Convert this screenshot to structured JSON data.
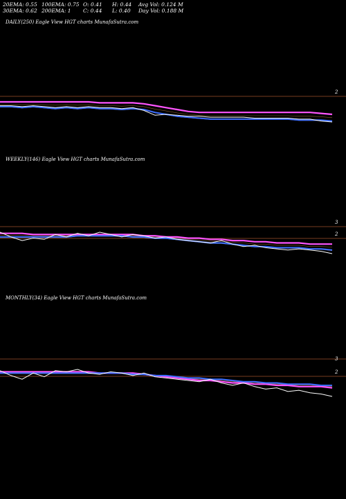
{
  "stats": {
    "row1": {
      "ema20": "20EMA: 0.55",
      "ema100": "100EMA: 0.75",
      "open": "O: 0.41",
      "high": "H: 0.44",
      "avg_vol": "Avg Vol: 0.124  M"
    },
    "row2": {
      "ema30": "30EMA: 0.62",
      "ema200": "200EMA: 1",
      "close": "C: 0.44",
      "low": "L: 0.40",
      "day_vol": "Day Vol: 0.188  M"
    }
  },
  "chart_data": [
    {
      "type": "line",
      "title": "DAILY(250) Eagle   View  HGT charts MunafaSutra.com",
      "level_labels": [
        "2"
      ],
      "colors": {
        "price": "#ffffff",
        "ema_fast": "#3a6cff",
        "ema_slow": "#ff55ff",
        "level": "#a0522d"
      },
      "series": [
        {
          "values": [
            0.62,
            0.62,
            0.61,
            0.62,
            0.61,
            0.6,
            0.61,
            0.6,
            0.61,
            0.6,
            0.6,
            0.59,
            0.6,
            0.57,
            0.52,
            0.53,
            0.52,
            0.51,
            0.51,
            0.5,
            0.5,
            0.5,
            0.5,
            0.49,
            0.49,
            0.49,
            0.49,
            0.48,
            0.48,
            0.46,
            0.45
          ]
        },
        {
          "values": [
            0.61,
            0.61,
            0.6,
            0.61,
            0.6,
            0.59,
            0.6,
            0.59,
            0.6,
            0.59,
            0.59,
            0.58,
            0.59,
            0.58,
            0.55,
            0.53,
            0.51,
            0.5,
            0.49,
            0.48,
            0.48,
            0.48,
            0.48,
            0.48,
            0.48,
            0.48,
            0.48,
            0.47,
            0.47,
            0.47,
            0.46
          ]
        },
        {
          "values": [
            0.66,
            0.66,
            0.66,
            0.66,
            0.66,
            0.66,
            0.66,
            0.66,
            0.66,
            0.65,
            0.65,
            0.65,
            0.65,
            0.64,
            0.62,
            0.6,
            0.58,
            0.56,
            0.55,
            0.55,
            0.55,
            0.55,
            0.55,
            0.55,
            0.55,
            0.55,
            0.55,
            0.55,
            0.55,
            0.54,
            0.53
          ]
        }
      ]
    },
    {
      "type": "line",
      "title": "WEEKLY(146) Eagle   View  HGT charts MunafaSutra.com",
      "level_labels": [
        "3",
        "2"
      ],
      "colors": {
        "price": "#ffffff",
        "ema_fast": "#3a6cff",
        "ema_slow": "#ff55ff",
        "level": "#a0522d"
      },
      "series": [
        {
          "values": [
            0.62,
            0.58,
            0.55,
            0.57,
            0.56,
            0.6,
            0.58,
            0.61,
            0.59,
            0.62,
            0.6,
            0.58,
            0.6,
            0.59,
            0.57,
            0.58,
            0.56,
            0.55,
            0.54,
            0.53,
            0.55,
            0.52,
            0.5,
            0.51,
            0.49,
            0.48,
            0.47,
            0.48,
            0.47,
            0.46,
            0.44
          ]
        },
        {
          "values": [
            0.58,
            0.58,
            0.58,
            0.58,
            0.58,
            0.58,
            0.58,
            0.59,
            0.59,
            0.59,
            0.59,
            0.59,
            0.58,
            0.58,
            0.57,
            0.57,
            0.56,
            0.55,
            0.54,
            0.53,
            0.53,
            0.52,
            0.51,
            0.5,
            0.5,
            0.49,
            0.49,
            0.49,
            0.48,
            0.48,
            0.47
          ]
        },
        {
          "values": [
            0.61,
            0.61,
            0.61,
            0.6,
            0.6,
            0.6,
            0.6,
            0.6,
            0.6,
            0.6,
            0.6,
            0.6,
            0.6,
            0.59,
            0.59,
            0.58,
            0.58,
            0.57,
            0.57,
            0.56,
            0.56,
            0.55,
            0.55,
            0.54,
            0.54,
            0.53,
            0.53,
            0.53,
            0.52,
            0.52,
            0.52
          ]
        }
      ]
    },
    {
      "type": "line",
      "title": "MONTHLY(34) Eagle   View  HGT charts MunafaSutra.com",
      "level_labels": [
        "3",
        "2"
      ],
      "colors": {
        "price": "#ffffff",
        "ema_fast": "#3a6cff",
        "ema_slow": "#ff55ff",
        "level": "#a0522d"
      },
      "series": [
        {
          "values": [
            0.62,
            0.58,
            0.55,
            0.6,
            0.57,
            0.62,
            0.61,
            0.63,
            0.6,
            0.59,
            0.61,
            0.6,
            0.58,
            0.6,
            0.57,
            0.56,
            0.55,
            0.54,
            0.53,
            0.55,
            0.52,
            0.5,
            0.52,
            0.49,
            0.47,
            0.48,
            0.45,
            0.46,
            0.44,
            0.43,
            0.41
          ]
        },
        {
          "values": [
            0.6,
            0.6,
            0.6,
            0.6,
            0.6,
            0.6,
            0.6,
            0.6,
            0.6,
            0.6,
            0.6,
            0.6,
            0.59,
            0.59,
            0.58,
            0.58,
            0.57,
            0.56,
            0.56,
            0.55,
            0.55,
            0.54,
            0.53,
            0.53,
            0.52,
            0.52,
            0.51,
            0.51,
            0.51,
            0.5,
            0.5
          ]
        },
        {
          "values": [
            0.61,
            0.61,
            0.61,
            0.61,
            0.61,
            0.61,
            0.61,
            0.61,
            0.61,
            0.6,
            0.6,
            0.6,
            0.6,
            0.59,
            0.58,
            0.57,
            0.56,
            0.55,
            0.54,
            0.54,
            0.53,
            0.52,
            0.52,
            0.51,
            0.51,
            0.5,
            0.5,
            0.49,
            0.49,
            0.49,
            0.48
          ]
        }
      ]
    }
  ]
}
